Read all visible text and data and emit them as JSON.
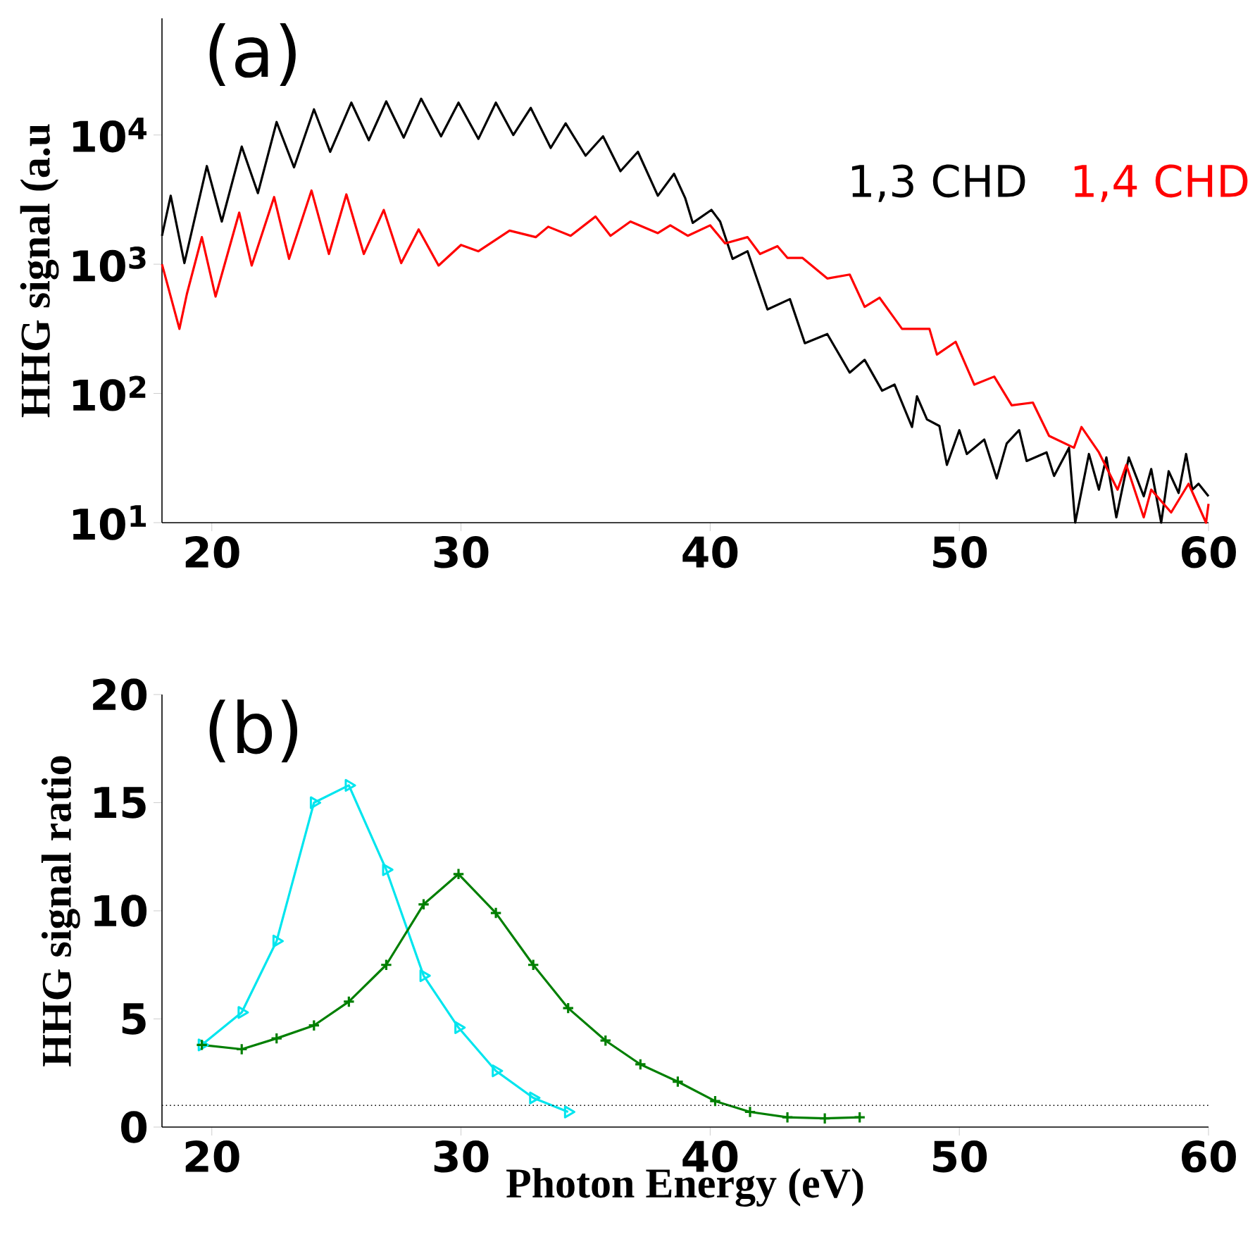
{
  "chart_data": [
    {
      "type": "line",
      "ylabel": "HHG signal (a.u",
      "annotations": [
        "(a)"
      ],
      "log": true,
      "legend": "right",
      "grid": false,
      "xlim": [
        18,
        60
      ],
      "xticks": [
        20,
        30,
        40,
        50,
        60
      ],
      "ylim": [
        10,
        80000
      ],
      "yticks": [
        {
          "value": 10,
          "label": "10$^{1}$"
        },
        {
          "value": 100,
          "label": "10$^{2}$"
        },
        {
          "value": 1000,
          "label": "10$^{3}$"
        },
        {
          "value": 10000,
          "label": "10$^{4}$"
        }
      ],
      "series": [
        {
          "name": "1,3 CHD",
          "color": "#000000",
          "x": [
            18.0,
            18.35,
            18.9,
            19.8,
            20.4,
            21.2,
            21.85,
            22.6,
            23.3,
            24.1,
            24.75,
            25.6,
            26.3,
            27.0,
            27.7,
            28.4,
            29.2,
            29.9,
            30.7,
            31.4,
            32.1,
            32.8,
            33.6,
            34.2,
            35.0,
            35.7,
            36.4,
            37.1,
            37.9,
            38.55,
            39.0,
            39.3,
            40.05,
            40.4,
            40.9,
            41.5,
            42.3,
            43.2,
            43.8,
            44.7,
            45.6,
            46.2,
            46.9,
            47.4,
            48.1,
            48.3,
            48.7,
            49.2,
            49.5,
            50.0,
            50.3,
            51.0,
            51.5,
            51.9,
            52.4,
            52.7,
            53.5,
            53.8,
            54.4,
            54.65,
            55.2,
            55.6,
            55.9,
            56.3,
            56.8,
            57.4,
            57.7,
            58.1,
            58.4,
            58.8,
            59.1,
            59.35,
            59.6,
            60.0
          ],
          "values": [
            1660,
            3390,
            1020,
            5750,
            2140,
            8130,
            3550,
            12600,
            5620,
            15800,
            7410,
            17800,
            9120,
            18200,
            9550,
            19100,
            9770,
            17800,
            9330,
            17800,
            10000,
            16200,
            7940,
            12300,
            6920,
            9770,
            5250,
            7410,
            3390,
            5010,
            3240,
            2090,
            2630,
            2140,
            1100,
            1260,
            447,
            537,
            245,
            288,
            145,
            182,
            105,
            117,
            55,
            95,
            63,
            56,
            28,
            52,
            34,
            44,
            22,
            41,
            52,
            30,
            35,
            23,
            38,
            10,
            34,
            18,
            32,
            11,
            32,
            16,
            26,
            10,
            25,
            17,
            34,
            18,
            20,
            16
          ]
        },
        {
          "name": "1,4 CHD",
          "color": "#ff0000",
          "x": [
            18.0,
            18.7,
            19.0,
            19.6,
            20.15,
            21.1,
            21.6,
            22.5,
            23.1,
            24.0,
            24.7,
            25.4,
            26.1,
            26.9,
            27.6,
            28.3,
            29.1,
            30.0,
            30.7,
            31.95,
            33.0,
            33.5,
            34.4,
            35.4,
            36.0,
            36.8,
            37.9,
            38.4,
            39.1,
            40.0,
            40.6,
            41.5,
            42.0,
            42.7,
            43.1,
            43.7,
            44.7,
            45.6,
            46.2,
            46.8,
            47.7,
            48.8,
            49.1,
            49.85,
            50.6,
            51.4,
            52.1,
            52.95,
            53.6,
            54.6,
            54.9,
            55.6,
            56.35,
            56.7,
            57.4,
            57.7,
            58.5,
            59.2,
            59.9,
            60.0
          ],
          "values": [
            1000,
            316,
            589,
            1620,
            562,
            2510,
            977,
            3310,
            1100,
            3720,
            1200,
            3470,
            1200,
            2630,
            1020,
            1860,
            977,
            1410,
            1260,
            1820,
            1620,
            1950,
            1660,
            2340,
            1660,
            2140,
            1740,
            2000,
            1660,
            2000,
            1450,
            1620,
            1200,
            1380,
            1120,
            1120,
            776,
            832,
            468,
            550,
            316,
            316,
            200,
            251,
            117,
            135,
            81,
            85,
            47,
            38,
            55,
            35,
            18,
            28,
            11,
            18,
            12,
            20,
            10,
            14
          ]
        }
      ]
    },
    {
      "type": "line",
      "ylabel": "HHG signal ratio",
      "xlabel": "Photon Energy (eV)",
      "annotations": [
        "(b)"
      ],
      "grid": false,
      "xlim": [
        18,
        60
      ],
      "xticks": [
        20,
        30,
        40,
        50,
        60
      ],
      "ylim": [
        0,
        20
      ],
      "yticks": [
        0,
        5,
        10,
        15,
        20
      ],
      "ref_lines": [
        {
          "axis": "y",
          "value": 1,
          "color": "#000000",
          "line_style": "dotted"
        }
      ],
      "series": [
        {
          "color": "#00e5ee",
          "marker": "triangle",
          "x": [
            19.6,
            21.2,
            22.6,
            24.1,
            25.5,
            27.0,
            28.5,
            29.9,
            31.4,
            32.9,
            34.3
          ],
          "values": [
            3.8,
            5.3,
            8.6,
            15.0,
            15.8,
            11.9,
            7.0,
            4.6,
            2.6,
            1.35,
            0.7
          ]
        },
        {
          "color": "#007f00",
          "marker": "cross",
          "x": [
            19.6,
            21.2,
            22.6,
            24.1,
            25.5,
            27.0,
            28.5,
            29.9,
            31.4,
            32.9,
            34.3,
            35.8,
            37.2,
            38.7,
            40.2,
            41.6,
            43.1,
            44.6,
            46.0
          ],
          "values": [
            3.8,
            3.6,
            4.1,
            4.7,
            5.8,
            7.5,
            10.3,
            11.7,
            9.9,
            7.5,
            5.5,
            4.0,
            2.9,
            2.1,
            1.2,
            0.7,
            0.45,
            0.4,
            0.45
          ]
        }
      ]
    }
  ]
}
